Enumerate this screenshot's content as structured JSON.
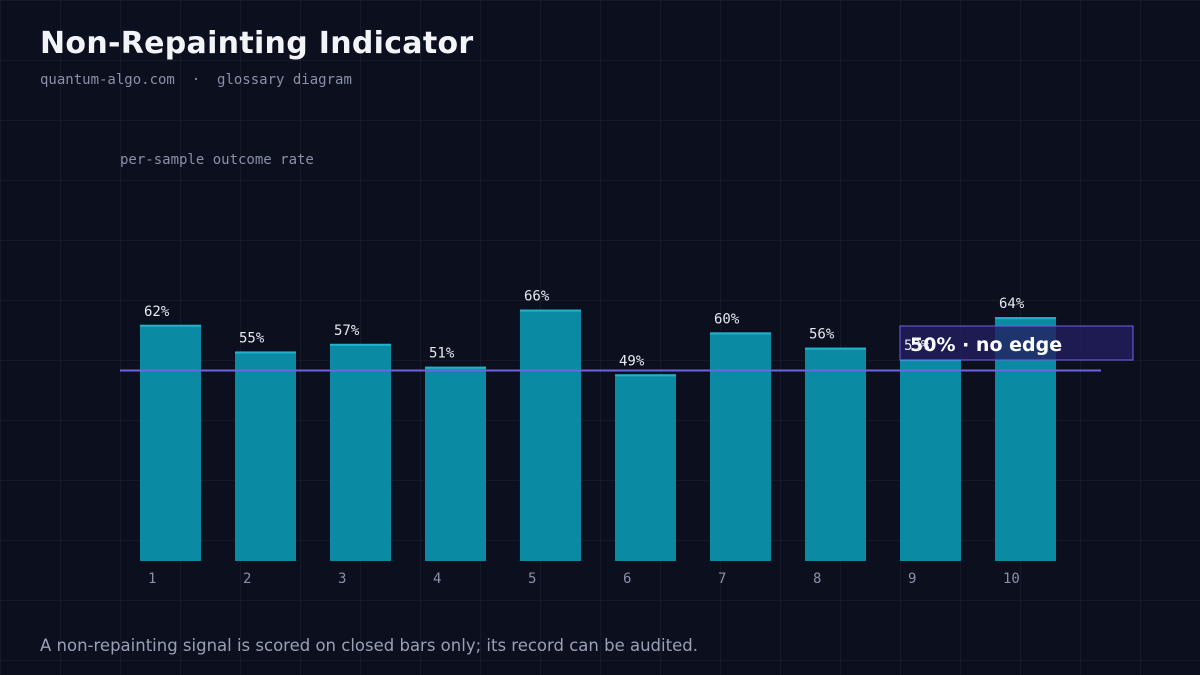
{
  "header": {
    "title": "Non-Repainting Indicator",
    "site": "quantum-algo.com",
    "separator": "·",
    "subtitle_suffix": "glossary diagram"
  },
  "chart_data": {
    "type": "bar",
    "title": "per-sample outcome rate",
    "categories": [
      "1",
      "2",
      "3",
      "4",
      "5",
      "6",
      "7",
      "8",
      "9",
      "10"
    ],
    "values": [
      62,
      55,
      57,
      51,
      66,
      49,
      60,
      56,
      53,
      64
    ],
    "value_labels": [
      "62%",
      "55%",
      "57%",
      "51%",
      "66%",
      "49%",
      "60%",
      "56%",
      "53%",
      "64%"
    ],
    "value_unit": "%",
    "ylim": [
      0,
      70
    ],
    "reference_line": {
      "value": 50,
      "label": "50% · no edge"
    },
    "grid": true,
    "colors": {
      "bar": "#0a8ba3",
      "reference": "#6e63e6",
      "value_label": "#e6e8f0",
      "tick_label": "#8a90a6"
    }
  },
  "footer": {
    "caption": "A non-repainting signal is scored on closed bars only; its record can be audited."
  }
}
